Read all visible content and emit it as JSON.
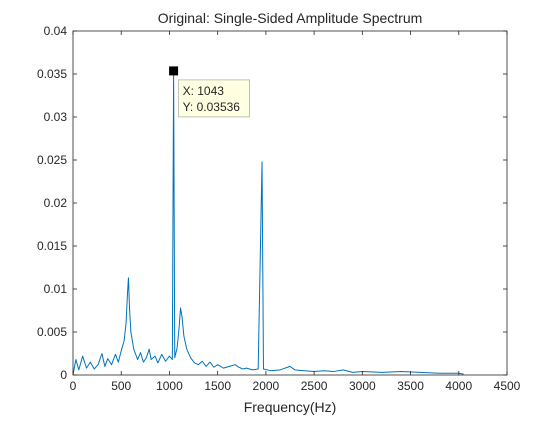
{
  "chart_data": {
    "type": "line",
    "title": "Original: Single-Sided Amplitude Spectrum",
    "xlabel": "Frequency(Hz)",
    "ylabel": "",
    "xlim": [
      0,
      4500
    ],
    "ylim": [
      0,
      0.04
    ],
    "xticks": [
      0,
      500,
      1000,
      1500,
      2000,
      2500,
      3000,
      3500,
      4000,
      4500
    ],
    "xtick_labels": [
      "0",
      "500",
      "1000",
      "1500",
      "2000",
      "2500",
      "3000",
      "3500",
      "4000",
      "4500"
    ],
    "yticks": [
      0,
      0.005,
      0.01,
      0.015,
      0.02,
      0.025,
      0.03,
      0.035,
      0.04
    ],
    "ytick_labels": [
      "0",
      "0.005",
      "0.01",
      "0.015",
      "0.02",
      "0.025",
      "0.03",
      "0.035",
      "0.04"
    ],
    "grid": false,
    "series": [
      {
        "color": "#0072BD",
        "points": [
          [
            0,
            0
          ],
          [
            30,
            0.0018
          ],
          [
            60,
            0.0006
          ],
          [
            100,
            0.0022
          ],
          [
            140,
            0.0008
          ],
          [
            180,
            0.0015
          ],
          [
            220,
            0.0007
          ],
          [
            260,
            0.0012
          ],
          [
            300,
            0.0025
          ],
          [
            330,
            0.001
          ],
          [
            360,
            0.0019
          ],
          [
            400,
            0.0012
          ],
          [
            440,
            0.0024
          ],
          [
            470,
            0.0015
          ],
          [
            500,
            0.0028
          ],
          [
            530,
            0.004
          ],
          [
            550,
            0.006
          ],
          [
            565,
            0.0095
          ],
          [
            575,
            0.0113
          ],
          [
            585,
            0.008
          ],
          [
            600,
            0.005
          ],
          [
            630,
            0.003
          ],
          [
            670,
            0.0018
          ],
          [
            700,
            0.0026
          ],
          [
            730,
            0.0015
          ],
          [
            760,
            0.002
          ],
          [
            790,
            0.003
          ],
          [
            810,
            0.0018
          ],
          [
            850,
            0.0022
          ],
          [
            880,
            0.0014
          ],
          [
            920,
            0.0024
          ],
          [
            960,
            0.0016
          ],
          [
            1000,
            0.0022
          ],
          [
            1030,
            0.0018
          ],
          [
            1043,
            0.03536
          ],
          [
            1055,
            0.002
          ],
          [
            1080,
            0.0032
          ],
          [
            1100,
            0.0055
          ],
          [
            1115,
            0.0078
          ],
          [
            1130,
            0.0068
          ],
          [
            1150,
            0.0045
          ],
          [
            1180,
            0.003
          ],
          [
            1220,
            0.002
          ],
          [
            1260,
            0.0014
          ],
          [
            1300,
            0.0012
          ],
          [
            1340,
            0.0016
          ],
          [
            1380,
            0.001
          ],
          [
            1420,
            0.0015
          ],
          [
            1460,
            0.0009
          ],
          [
            1500,
            0.0012
          ],
          [
            1560,
            0.0008
          ],
          [
            1620,
            0.001
          ],
          [
            1680,
            0.0012
          ],
          [
            1720,
            0.0009
          ],
          [
            1760,
            0.0007
          ],
          [
            1800,
            0.0008
          ],
          [
            1860,
            0.0006
          ],
          [
            1920,
            0.0007
          ],
          [
            1960,
            0.0248
          ],
          [
            1975,
            0.0007
          ],
          [
            2050,
            0.0005
          ],
          [
            2150,
            0.0006
          ],
          [
            2250,
            0.001
          ],
          [
            2300,
            0.0006
          ],
          [
            2400,
            0.0005
          ],
          [
            2500,
            0.0004
          ],
          [
            2600,
            0.0005
          ],
          [
            2700,
            0.0004
          ],
          [
            2800,
            0.0006
          ],
          [
            2900,
            0.0003
          ],
          [
            3000,
            0.0004
          ],
          [
            3200,
            0.0003
          ],
          [
            3400,
            0.0004
          ],
          [
            3600,
            0.0003
          ],
          [
            3800,
            0.0002
          ],
          [
            4000,
            0.0002
          ],
          [
            4050,
            0.0001
          ]
        ]
      }
    ],
    "annotation": {
      "x": 1043,
      "y": 0.03536,
      "x_text": "X: 1043",
      "y_text": "Y: 0.03536"
    }
  }
}
